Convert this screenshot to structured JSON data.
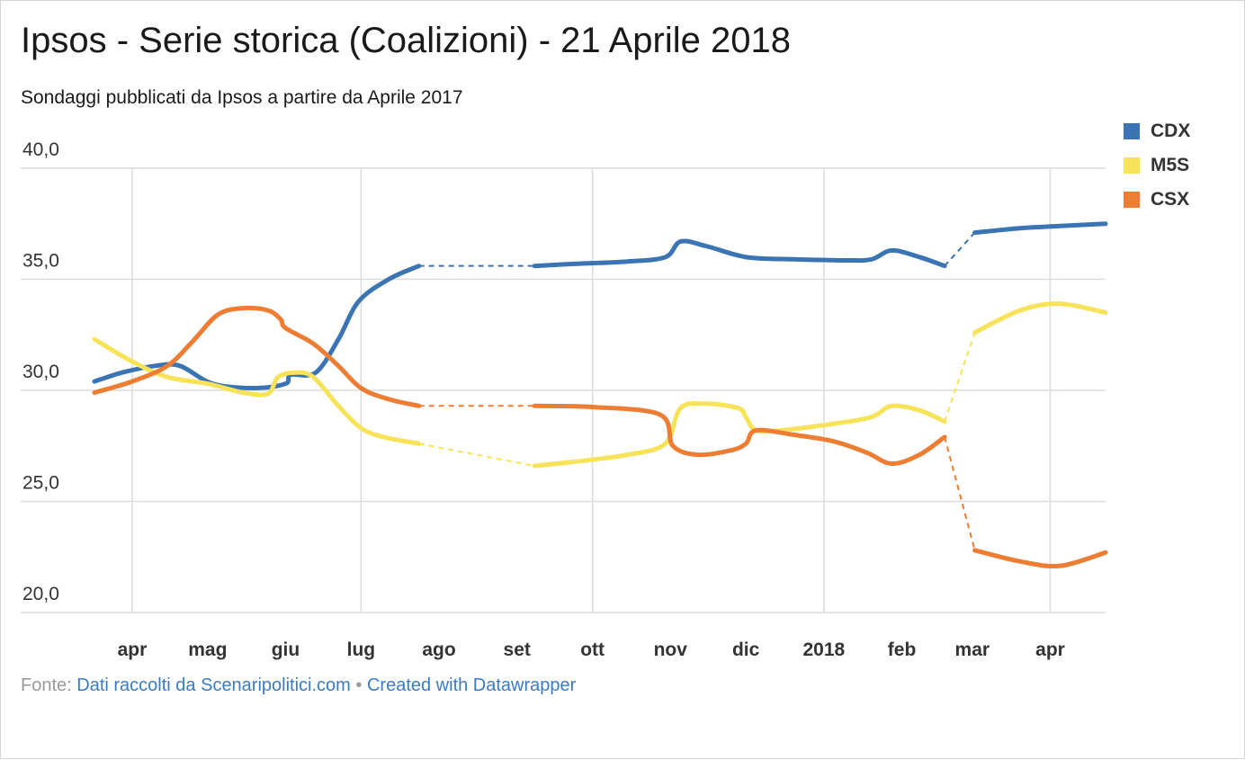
{
  "title": "Ipsos - Serie storica (Coalizioni) - 21 Aprile 2018",
  "subtitle": "Sondaggi pubblicati da Ipsos a partire da Aprile 2017",
  "footer": {
    "prefix": "Fonte:",
    "source_link": "Dati raccolti da Scenaripolitici.com",
    "separator": "•",
    "credit_link": "Created with Datawrapper"
  },
  "legend": [
    {
      "label": "CDX",
      "color": "#3a74b3"
    },
    {
      "label": "M5S",
      "color": "#f7e35a"
    },
    {
      "label": "CSX",
      "color": "#ec7d33"
    }
  ],
  "chart_data": {
    "type": "line",
    "title": "Ipsos - Serie storica (Coalizioni) - 21 Aprile 2018",
    "xlabel": "",
    "ylabel": "",
    "ylim": [
      20,
      40
    ],
    "xlim": [
      "2017-03-17",
      "2018-04-23"
    ],
    "y_ticks": [
      "40,0",
      "35,0",
      "30,0",
      "25,0",
      "20,0"
    ],
    "y_tick_values": [
      40,
      35,
      30,
      25,
      20
    ],
    "x_tick_labels": [
      "apr",
      "mag",
      "giu",
      "lug",
      "ago",
      "set",
      "ott",
      "nov",
      "dic",
      "2018",
      "feb",
      "mar",
      "apr"
    ],
    "x_tick_dates": [
      "2017-04-01",
      "2017-05-01",
      "2017-06-01",
      "2017-07-01",
      "2017-08-01",
      "2017-09-01",
      "2017-10-01",
      "2017-11-01",
      "2017-12-01",
      "2018-01-01",
      "2018-02-01",
      "2018-03-01",
      "2018-04-01"
    ],
    "gridlines_at": [
      "2017-04-01",
      "2017-07-01",
      "2017-10-01",
      "2018-01-01",
      "2018-04-01"
    ],
    "grid": true,
    "legend_position": "top-right",
    "gaps_dashed": true,
    "series": [
      {
        "name": "CDX",
        "color": "#3a74b3",
        "points": [
          [
            "2017-03-17",
            30.4
          ],
          [
            "2017-03-28",
            30.8
          ],
          [
            "2017-04-10",
            31.1
          ],
          [
            "2017-04-20",
            31.1
          ],
          [
            "2017-05-03",
            30.3
          ],
          [
            "2017-05-20",
            30.1
          ],
          [
            "2017-06-01",
            30.3
          ],
          [
            "2017-06-03",
            30.7
          ],
          [
            "2017-06-13",
            30.8
          ],
          [
            "2017-06-22",
            32.3
          ],
          [
            "2017-06-30",
            34.0
          ],
          [
            "2017-07-12",
            35.0
          ],
          [
            "2017-07-24",
            35.6
          ],
          [
            "2017-09-08",
            35.6
          ],
          [
            "2017-09-25",
            35.7
          ],
          [
            "2017-10-15",
            35.8
          ],
          [
            "2017-10-30",
            36.0
          ],
          [
            "2017-11-05",
            36.7
          ],
          [
            "2017-11-15",
            36.5
          ],
          [
            "2017-11-27",
            36.1
          ],
          [
            "2017-12-05",
            35.95
          ],
          [
            "2017-12-20",
            35.9
          ],
          [
            "2018-01-10",
            35.85
          ],
          [
            "2018-01-20",
            35.9
          ],
          [
            "2018-01-28",
            36.3
          ],
          [
            "2018-02-08",
            36.0
          ],
          [
            "2018-02-18",
            35.6
          ],
          [
            "2018-03-02",
            37.1
          ],
          [
            "2018-03-20",
            37.3
          ],
          [
            "2018-04-05",
            37.4
          ],
          [
            "2018-04-23",
            37.5
          ]
        ],
        "gaps": [
          [
            "2017-07-24",
            "2017-09-08"
          ],
          [
            "2018-02-18",
            "2018-03-02"
          ]
        ]
      },
      {
        "name": "M5S",
        "color": "#f7e35a",
        "points": [
          [
            "2017-03-17",
            32.3
          ],
          [
            "2017-04-01",
            31.3
          ],
          [
            "2017-04-15",
            30.6
          ],
          [
            "2017-05-01",
            30.3
          ],
          [
            "2017-05-15",
            29.9
          ],
          [
            "2017-05-25",
            29.85
          ],
          [
            "2017-05-29",
            30.6
          ],
          [
            "2017-06-05",
            30.8
          ],
          [
            "2017-06-12",
            30.6
          ],
          [
            "2017-06-22",
            29.3
          ],
          [
            "2017-07-01",
            28.3
          ],
          [
            "2017-07-10",
            27.9
          ],
          [
            "2017-07-24",
            27.6
          ],
          [
            "2017-09-08",
            26.6
          ],
          [
            "2017-09-25",
            26.8
          ],
          [
            "2017-10-15",
            27.1
          ],
          [
            "2017-10-30",
            27.6
          ],
          [
            "2017-11-05",
            29.2
          ],
          [
            "2017-11-15",
            29.4
          ],
          [
            "2017-11-28",
            29.2
          ],
          [
            "2017-12-01",
            28.8
          ],
          [
            "2017-12-05",
            28.2
          ],
          [
            "2017-12-15",
            28.2
          ],
          [
            "2018-01-05",
            28.5
          ],
          [
            "2018-01-20",
            28.8
          ],
          [
            "2018-01-28",
            29.3
          ],
          [
            "2018-02-08",
            29.1
          ],
          [
            "2018-02-18",
            28.6
          ],
          [
            "2018-03-02",
            32.6
          ],
          [
            "2018-03-20",
            33.6
          ],
          [
            "2018-04-05",
            33.9
          ],
          [
            "2018-04-23",
            33.5
          ]
        ],
        "gaps": [
          [
            "2017-07-24",
            "2017-09-08"
          ],
          [
            "2018-02-18",
            "2018-03-02"
          ]
        ]
      },
      {
        "name": "CSX",
        "color": "#ec7d33",
        "points": [
          [
            "2017-03-17",
            29.9
          ],
          [
            "2017-04-01",
            30.4
          ],
          [
            "2017-04-15",
            31.1
          ],
          [
            "2017-04-25",
            32.2
          ],
          [
            "2017-05-05",
            33.4
          ],
          [
            "2017-05-15",
            33.7
          ],
          [
            "2017-05-25",
            33.6
          ],
          [
            "2017-05-30",
            33.2
          ],
          [
            "2017-06-01",
            32.8
          ],
          [
            "2017-06-12",
            32.1
          ],
          [
            "2017-06-22",
            31.1
          ],
          [
            "2017-07-01",
            30.1
          ],
          [
            "2017-07-12",
            29.6
          ],
          [
            "2017-07-24",
            29.3
          ],
          [
            "2017-09-08",
            29.3
          ],
          [
            "2017-10-01",
            29.25
          ],
          [
            "2017-10-28",
            28.9
          ],
          [
            "2017-11-02",
            27.5
          ],
          [
            "2017-11-12",
            27.1
          ],
          [
            "2017-11-25",
            27.3
          ],
          [
            "2017-12-01",
            27.6
          ],
          [
            "2017-12-05",
            28.2
          ],
          [
            "2017-12-20",
            28.0
          ],
          [
            "2018-01-05",
            27.7
          ],
          [
            "2018-01-18",
            27.2
          ],
          [
            "2018-01-28",
            26.7
          ],
          [
            "2018-02-08",
            27.1
          ],
          [
            "2018-02-18",
            27.9
          ],
          [
            "2018-03-02",
            22.8
          ],
          [
            "2018-03-20",
            22.3
          ],
          [
            "2018-04-05",
            22.1
          ],
          [
            "2018-04-23",
            22.7
          ]
        ],
        "gaps": [
          [
            "2017-07-24",
            "2017-09-08"
          ],
          [
            "2018-02-18",
            "2018-03-02"
          ]
        ]
      }
    ]
  }
}
